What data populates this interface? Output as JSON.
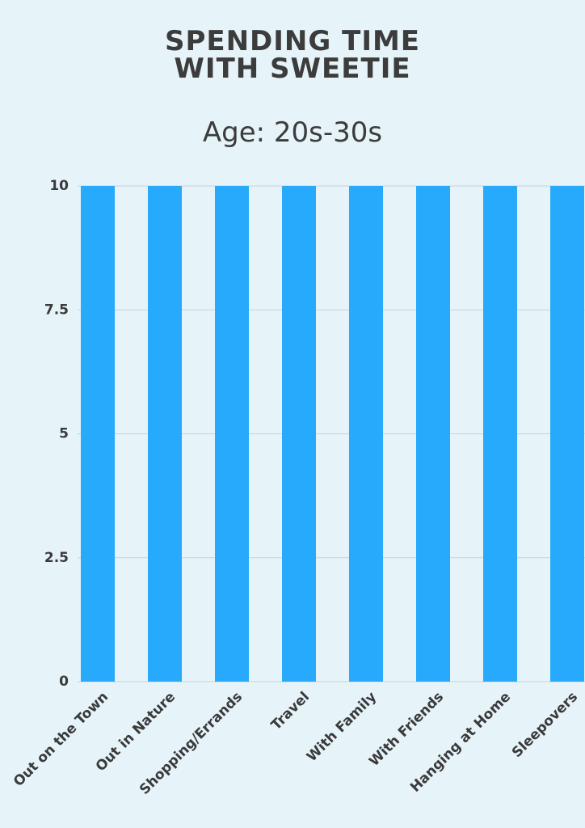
{
  "chart_data": {
    "type": "bar",
    "title": "SPENDING TIME WITH SWEETIE",
    "subtitle": "Age: 20s-30s",
    "categories": [
      "Out on the Town",
      "Out in Nature",
      "Shopping/Errands",
      "Travel",
      "With Family",
      "With Friends",
      "Hanging at Home",
      "Sleepovers"
    ],
    "values": [
      10,
      10,
      10,
      10,
      10,
      10,
      10,
      10
    ],
    "color": "#27a9fc",
    "ylim": [
      0,
      10
    ],
    "yticks": [
      0,
      2.5,
      5,
      7.5,
      10
    ],
    "grid": true
  }
}
